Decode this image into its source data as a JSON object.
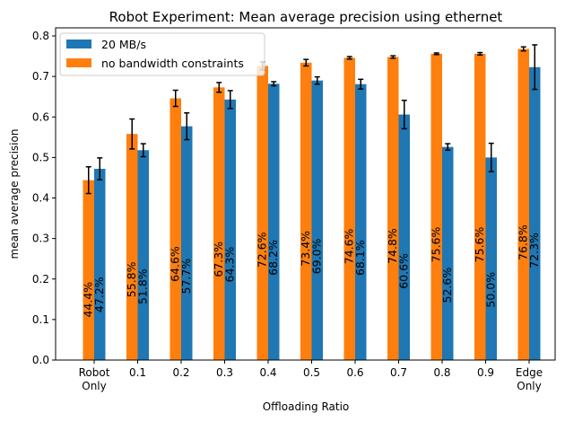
{
  "chart_data": {
    "type": "bar",
    "title": "Robot Experiment: Mean average precision using ethernet",
    "xlabel": "Offloading Ratio",
    "ylabel": "mean average precision",
    "categories": [
      "Robot\nOnly",
      "0.1",
      "0.2",
      "0.3",
      "0.4",
      "0.5",
      "0.6",
      "0.7",
      "0.8",
      "0.9",
      "Edge\nOnly"
    ],
    "ylim": [
      0,
      0.82
    ],
    "yticks": [
      "0.0",
      "0.1",
      "0.2",
      "0.3",
      "0.4",
      "0.5",
      "0.6",
      "0.7",
      "0.8"
    ],
    "legend_position": "top-left",
    "grid": false,
    "series": [
      {
        "name": "no bandwidth constraints",
        "color": "#ff7f0e",
        "values": [
          0.444,
          0.558,
          0.646,
          0.673,
          0.726,
          0.734,
          0.746,
          0.748,
          0.756,
          0.756,
          0.768
        ],
        "errors": [
          0.033,
          0.037,
          0.02,
          0.012,
          0.01,
          0.008,
          0.003,
          0.003,
          0.002,
          0.003,
          0.005
        ],
        "labels": [
          "44.4%",
          "55.8%",
          "64.6%",
          "67.3%",
          "72.6%",
          "73.4%",
          "74.6%",
          "74.8%",
          "75.6%",
          "75.6%",
          "76.8%"
        ]
      },
      {
        "name": "20 MB/s",
        "color": "#1f77b4",
        "values": [
          0.472,
          0.518,
          0.577,
          0.643,
          0.682,
          0.69,
          0.681,
          0.606,
          0.526,
          0.5,
          0.723
        ],
        "errors": [
          0.027,
          0.016,
          0.033,
          0.022,
          0.005,
          0.009,
          0.012,
          0.035,
          0.008,
          0.035,
          0.055
        ],
        "labels": [
          "47.2%",
          "51.8%",
          "57.7%",
          "64.3%",
          "68.2%",
          "69.0%",
          "68.1%",
          "60.6%",
          "52.6%",
          "50.0%",
          "72.3%"
        ]
      }
    ]
  }
}
